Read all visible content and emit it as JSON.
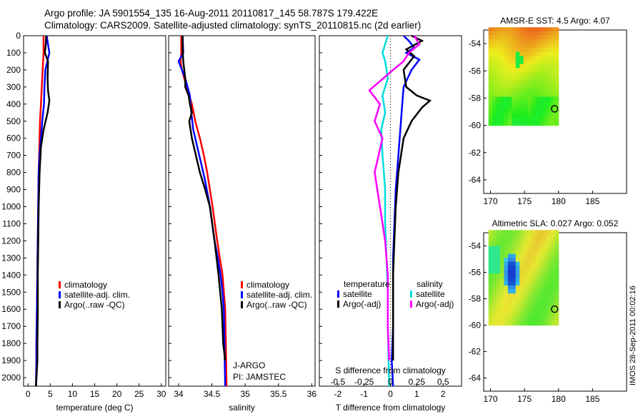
{
  "title": {
    "line1": "Argo profile: JA 5901554_135 16-Aug-2011 20110817_145 58.787S 179.422E",
    "line2": "Climatology: CARS2009. Satellite-adjusted climatology: synTS_20110815.nc (2d earlier)"
  },
  "stamp": "IMOS 28-Sep-2011 00:02:16",
  "chart_data": [
    {
      "type": "line",
      "id": "temperature",
      "xlabel": "temperature (deg C)",
      "ylabel": "",
      "xlim": [
        -1,
        31
      ],
      "ylim": [
        2050,
        0
      ],
      "xticks": [
        0,
        5,
        10,
        15,
        20,
        25,
        30
      ],
      "yticks": [
        0,
        100,
        200,
        300,
        400,
        500,
        600,
        700,
        800,
        900,
        1000,
        1100,
        1200,
        1300,
        1400,
        1500,
        1600,
        1700,
        1800,
        1900,
        2000
      ],
      "legend": [
        "climatology",
        "satellite-adj. clim.",
        "Argo(..raw -QC)"
      ],
      "series": [
        {
          "name": "climatology",
          "color": "#ff0000",
          "x": [
            3.5,
            3.5,
            3.3,
            3.1,
            2.9,
            2.7,
            2.6,
            2.5,
            2.4,
            2.3,
            2.2,
            2.1,
            2.0,
            1.9,
            1.9,
            1.8
          ],
          "y": [
            0,
            100,
            200,
            300,
            400,
            500,
            600,
            700,
            800,
            1000,
            1200,
            1400,
            1600,
            1800,
            1900,
            2050
          ]
        },
        {
          "name": "satellite-adj. clim.",
          "color": "#0000ff",
          "x": [
            4.2,
            4.8,
            3.9,
            3.7,
            3.6,
            3.2,
            2.9,
            2.6,
            2.4,
            2.3,
            2.2,
            2.1,
            2.0,
            1.9,
            1.9,
            1.8
          ],
          "y": [
            0,
            100,
            200,
            300,
            400,
            500,
            600,
            700,
            800,
            1000,
            1200,
            1400,
            1600,
            1800,
            1900,
            2050
          ]
        },
        {
          "name": "Argo(..raw -QC)",
          "color": "#000000",
          "x": [
            4.1,
            4.0,
            3.8,
            4.5,
            4.4,
            4.5,
            4.8,
            4.4,
            3.5,
            2.9,
            2.6,
            2.4,
            2.3,
            2.2,
            2.2,
            2.1,
            2.1,
            1.8
          ],
          "y": [
            0,
            50,
            100,
            150,
            250,
            320,
            380,
            450,
            550,
            650,
            800,
            1000,
            1200,
            1400,
            1600,
            1800,
            1900,
            2050
          ]
        }
      ]
    },
    {
      "type": "line",
      "id": "salinity",
      "xlabel": "salinity",
      "ylabel": "",
      "xlim": [
        33.85,
        36.05
      ],
      "ylim": [
        2050,
        0
      ],
      "xticks": [
        34,
        34.5,
        35,
        35.5,
        36
      ],
      "legend": [
        "climatology",
        "satellite-adj. clim.",
        "Argo(..raw -QC)"
      ],
      "annotations": [
        "J-ARGO",
        "PI: JAMSTEC"
      ],
      "series": [
        {
          "name": "climatology",
          "color": "#ff0000",
          "x": [
            34.04,
            34.04,
            34.03,
            34.05,
            34.12,
            34.2,
            34.25,
            34.32,
            34.38,
            34.43,
            34.51,
            34.58,
            34.62,
            34.66,
            34.68,
            34.7,
            34.71,
            34.72
          ],
          "y": [
            0,
            100,
            150,
            200,
            300,
            400,
            500,
            600,
            700,
            800,
            1000,
            1200,
            1300,
            1400,
            1500,
            1600,
            1800,
            2050
          ]
        },
        {
          "name": "satellite-adj. clim.",
          "color": "#0000ff",
          "x": [
            34.06,
            34.07,
            34.0,
            34.1,
            34.17,
            34.19,
            34.22,
            34.28,
            34.34,
            34.4,
            34.47,
            34.54,
            34.59,
            34.63,
            34.66,
            34.68,
            34.7
          ],
          "y": [
            0,
            100,
            150,
            250,
            350,
            450,
            550,
            650,
            750,
            850,
            1000,
            1200,
            1300,
            1400,
            1500,
            1600,
            2050
          ]
        },
        {
          "name": "Argo(..raw -QC)",
          "color": "#000000",
          "x": [
            34.06,
            34.06,
            34.07,
            34.1,
            34.1,
            34.15,
            34.17,
            34.2,
            34.16,
            34.2,
            34.26,
            34.32,
            34.4,
            34.47,
            34.54,
            34.6,
            34.65,
            34.67,
            34.7
          ],
          "y": [
            0,
            80,
            150,
            250,
            300,
            350,
            400,
            450,
            500,
            600,
            700,
            800,
            900,
            1000,
            1200,
            1400,
            1600,
            1800,
            1900
          ]
        }
      ]
    },
    {
      "type": "line",
      "id": "difference",
      "xlabel": "T difference from climatology",
      "xlabel2": "S difference from climatology",
      "xlim": [
        -2.7,
        2.7
      ],
      "ylim": [
        2050,
        0
      ],
      "xticks": [
        -2,
        -1,
        0,
        1,
        2
      ],
      "xticks2": [
        "-0.5",
        "-0.25",
        "0",
        "0.25",
        "0.5"
      ],
      "legend_headers": [
        "temperature",
        "salinity"
      ],
      "legend": [
        "satellite",
        "Argo(-adj)",
        "satellite",
        "Argo(-adj)"
      ],
      "series": [
        {
          "name": "satellite",
          "group": "temperature",
          "color": "#0000ff",
          "x": [
            0.5,
            0.7,
            0.9,
            0.6,
            1.1,
            0.8,
            0.5,
            0.4,
            0.3,
            0.2,
            0.15,
            0.1,
            0.1,
            0.1,
            0.05,
            0.1
          ],
          "y": [
            0,
            30,
            70,
            100,
            140,
            200,
            300,
            500,
            700,
            900,
            1100,
            1300,
            1500,
            1700,
            1900,
            2050
          ]
        },
        {
          "name": "Argo(-adj)",
          "group": "temperature",
          "color": "#000000",
          "x": [
            0.8,
            1.2,
            0.6,
            0.9,
            0.5,
            0.6,
            1.0,
            1.5,
            1.2,
            0.8,
            0.5,
            0.3,
            0.2,
            0.15,
            0.1,
            0.1,
            0.1,
            0.1
          ],
          "y": [
            0,
            30,
            80,
            120,
            200,
            300,
            350,
            380,
            420,
            500,
            600,
            800,
            1000,
            1200,
            1400,
            1600,
            1800,
            1900
          ]
        },
        {
          "name": "satellite",
          "group": "salinity",
          "color": "#00dddd",
          "x": [
            -0.1,
            -0.3,
            -0.2,
            -0.1,
            -0.3,
            -0.2,
            -0.35,
            -0.3,
            -0.2,
            -0.2,
            -0.15,
            -0.1,
            -0.1,
            -0.05
          ],
          "y": [
            0,
            100,
            150,
            250,
            350,
            450,
            550,
            700,
            900,
            1100,
            1300,
            1500,
            1700,
            2050
          ]
        },
        {
          "name": "Argo(-adj)",
          "group": "salinity",
          "color": "#ff00ff",
          "x": [
            0.9,
            1.1,
            0.7,
            0.5,
            0.1,
            -0.8,
            -0.4,
            -0.6,
            -0.3,
            -0.6,
            -0.4,
            -0.2,
            -0.1,
            -0.1,
            -0.05
          ],
          "y": [
            0,
            50,
            100,
            150,
            200,
            320,
            400,
            500,
            600,
            800,
            1000,
            1200,
            1400,
            1700,
            1900
          ]
        }
      ]
    },
    {
      "type": "heatmap",
      "id": "sst-map",
      "title": "AMSR-E SST: 4.5 Argo: 4.07",
      "xlim": [
        169,
        190
      ],
      "ylim": [
        -65,
        -53
      ],
      "xticks": [
        170,
        175,
        180,
        185
      ],
      "yticks": [
        -54,
        -56,
        -58,
        -60,
        -62,
        -64
      ],
      "marker": {
        "lon": 179.422,
        "lat": -58.787
      },
      "data_extent": {
        "lon": [
          169.7,
          180
        ],
        "lat": [
          -60,
          -52.8
        ]
      }
    },
    {
      "type": "heatmap",
      "id": "sla-map",
      "title": "Altimetric SLA: 0.027 Argo: 0.052",
      "xlim": [
        169,
        190
      ],
      "ylim": [
        -65,
        -53
      ],
      "xticks": [
        170,
        175,
        180,
        185
      ],
      "yticks": [
        -54,
        -56,
        -58,
        -60,
        -62,
        -64
      ],
      "marker": {
        "lon": 179.422,
        "lat": -58.787
      },
      "data_extent": {
        "lon": [
          169.7,
          180
        ],
        "lat": [
          -60,
          -52.8
        ]
      }
    }
  ]
}
